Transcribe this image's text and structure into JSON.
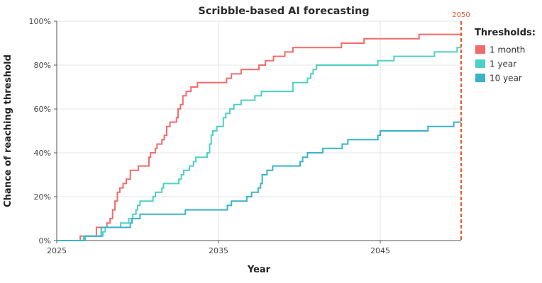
{
  "chart_data": {
    "type": "line",
    "step": true,
    "title": "Scribble-based AI forecasting",
    "xlabel": "Year",
    "ylabel": "Chance of reaching threshold",
    "xlim": [
      2025,
      2050
    ],
    "ylim": [
      0,
      100
    ],
    "x_ticks": [
      2025,
      2035,
      2045
    ],
    "y_ticks": [
      0,
      20,
      40,
      60,
      80,
      100
    ],
    "y_tick_format": "%",
    "grid": true,
    "legend_title": "Thresholds:",
    "legend_position": "right",
    "vertical_marker": {
      "x": 2050,
      "label": "2050",
      "color": "#e8572a"
    },
    "series": [
      {
        "name": "1 month",
        "color": "#f26b6b",
        "points": [
          [
            2025,
            0
          ],
          [
            2026.4,
            0
          ],
          [
            2026.45,
            2
          ],
          [
            2027.4,
            2
          ],
          [
            2027.45,
            6
          ],
          [
            2028.0,
            6
          ],
          [
            2028.1,
            8
          ],
          [
            2028.3,
            10
          ],
          [
            2028.45,
            14
          ],
          [
            2028.6,
            18
          ],
          [
            2028.75,
            22
          ],
          [
            2028.9,
            24
          ],
          [
            2029.1,
            26
          ],
          [
            2029.3,
            28
          ],
          [
            2029.55,
            32
          ],
          [
            2030.0,
            32
          ],
          [
            2030.05,
            34
          ],
          [
            2030.65,
            34
          ],
          [
            2030.7,
            38
          ],
          [
            2030.8,
            40
          ],
          [
            2031.1,
            42
          ],
          [
            2031.2,
            44
          ],
          [
            2031.5,
            46
          ],
          [
            2031.65,
            48
          ],
          [
            2031.8,
            52
          ],
          [
            2032.0,
            54
          ],
          [
            2032.4,
            56
          ],
          [
            2032.5,
            60
          ],
          [
            2032.65,
            62
          ],
          [
            2032.8,
            66
          ],
          [
            2033.0,
            68
          ],
          [
            2033.3,
            70
          ],
          [
            2033.7,
            72
          ],
          [
            2034.1,
            72
          ],
          [
            2035.0,
            72
          ],
          [
            2035.5,
            74
          ],
          [
            2035.8,
            76
          ],
          [
            2036.4,
            78
          ],
          [
            2037.3,
            78
          ],
          [
            2037.5,
            80
          ],
          [
            2037.9,
            82
          ],
          [
            2038.4,
            84
          ],
          [
            2039.1,
            86
          ],
          [
            2039.6,
            88
          ],
          [
            2042.5,
            88
          ],
          [
            2042.6,
            90
          ],
          [
            2043.9,
            90
          ],
          [
            2044.0,
            92
          ],
          [
            2047.3,
            92
          ],
          [
            2047.4,
            94
          ],
          [
            2050,
            94
          ]
        ]
      },
      {
        "name": "1 year",
        "color": "#4fd0c4",
        "points": [
          [
            2025,
            0
          ],
          [
            2026.6,
            0
          ],
          [
            2026.65,
            2
          ],
          [
            2027.8,
            2
          ],
          [
            2027.85,
            4
          ],
          [
            2028.0,
            6
          ],
          [
            2028.9,
            6
          ],
          [
            2028.95,
            8
          ],
          [
            2029.4,
            8
          ],
          [
            2029.45,
            10
          ],
          [
            2029.7,
            12
          ],
          [
            2029.9,
            14
          ],
          [
            2030.0,
            16
          ],
          [
            2030.15,
            18
          ],
          [
            2030.9,
            18
          ],
          [
            2030.95,
            20
          ],
          [
            2031.1,
            22
          ],
          [
            2031.5,
            24
          ],
          [
            2031.6,
            26
          ],
          [
            2032.5,
            26
          ],
          [
            2032.55,
            28
          ],
          [
            2032.7,
            30
          ],
          [
            2032.85,
            32
          ],
          [
            2033.2,
            34
          ],
          [
            2033.45,
            36
          ],
          [
            2033.6,
            38
          ],
          [
            2034.25,
            38
          ],
          [
            2034.3,
            40
          ],
          [
            2034.45,
            44
          ],
          [
            2034.55,
            48
          ],
          [
            2034.65,
            50
          ],
          [
            2034.9,
            52
          ],
          [
            2035.3,
            56
          ],
          [
            2035.45,
            58
          ],
          [
            2035.7,
            60
          ],
          [
            2035.95,
            62
          ],
          [
            2036.4,
            64
          ],
          [
            2037.0,
            64
          ],
          [
            2037.25,
            66
          ],
          [
            2037.65,
            68
          ],
          [
            2039.5,
            68
          ],
          [
            2039.6,
            72
          ],
          [
            2040.2,
            72
          ],
          [
            2040.5,
            74
          ],
          [
            2040.7,
            76
          ],
          [
            2040.85,
            78
          ],
          [
            2041.05,
            80
          ],
          [
            2044.8,
            80
          ],
          [
            2044.85,
            82
          ],
          [
            2045.8,
            82
          ],
          [
            2045.85,
            84
          ],
          [
            2048.3,
            84
          ],
          [
            2048.35,
            86
          ],
          [
            2049.7,
            86
          ],
          [
            2049.75,
            88
          ],
          [
            2050,
            88
          ]
        ]
      },
      {
        "name": "10 year",
        "color": "#3ab3c7",
        "points": [
          [
            2025,
            0
          ],
          [
            2026.7,
            0
          ],
          [
            2026.75,
            2
          ],
          [
            2027.7,
            2
          ],
          [
            2027.75,
            6
          ],
          [
            2029.5,
            6
          ],
          [
            2029.55,
            8
          ],
          [
            2029.65,
            10
          ],
          [
            2030.1,
            10
          ],
          [
            2030.15,
            12
          ],
          [
            2032.9,
            12
          ],
          [
            2032.95,
            14
          ],
          [
            2035.5,
            14
          ],
          [
            2035.55,
            16
          ],
          [
            2035.8,
            18
          ],
          [
            2036.7,
            18
          ],
          [
            2036.75,
            20
          ],
          [
            2037.05,
            22
          ],
          [
            2037.45,
            24
          ],
          [
            2037.6,
            26
          ],
          [
            2037.7,
            30
          ],
          [
            2038.0,
            32
          ],
          [
            2038.35,
            34
          ],
          [
            2040.0,
            34
          ],
          [
            2040.05,
            36
          ],
          [
            2040.2,
            38
          ],
          [
            2040.5,
            40
          ],
          [
            2041.4,
            40
          ],
          [
            2041.45,
            42
          ],
          [
            2042.6,
            42
          ],
          [
            2042.65,
            44
          ],
          [
            2043.0,
            46
          ],
          [
            2044.8,
            46
          ],
          [
            2044.85,
            48
          ],
          [
            2045.0,
            50
          ],
          [
            2047.9,
            50
          ],
          [
            2047.95,
            52
          ],
          [
            2049.5,
            52
          ],
          [
            2049.55,
            54
          ],
          [
            2050,
            54
          ]
        ]
      }
    ]
  }
}
